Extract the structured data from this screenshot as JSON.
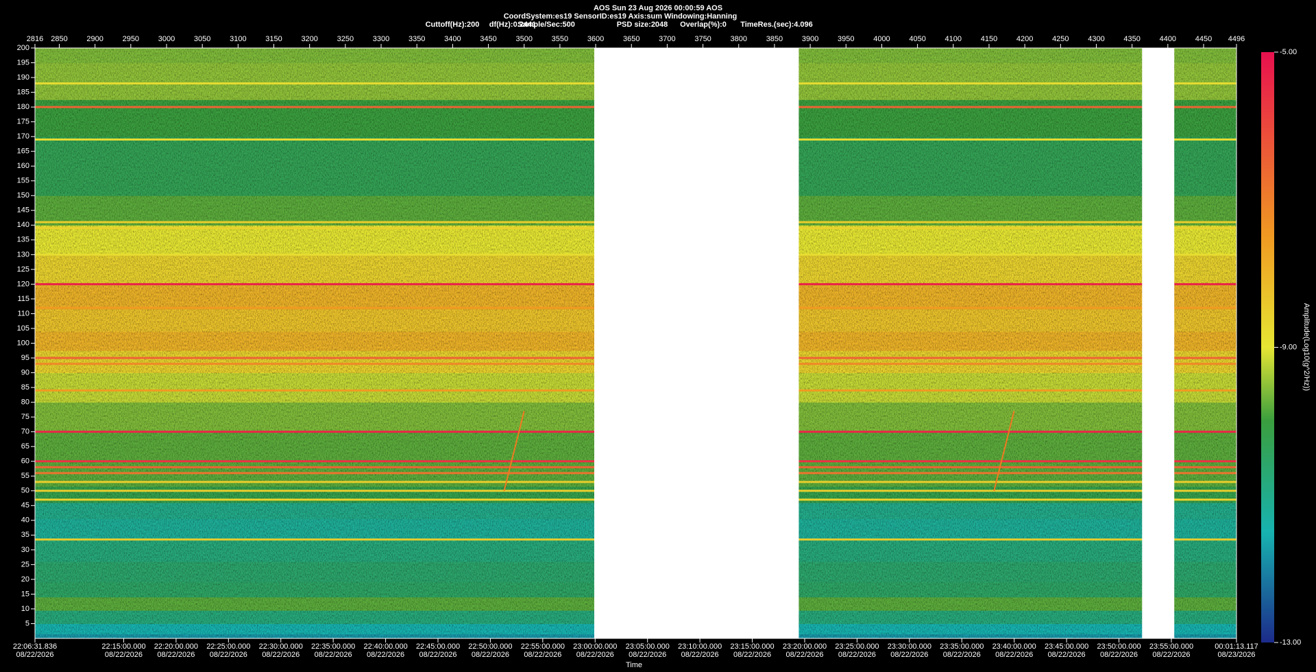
{
  "chart_data": {
    "type": "spectrogram",
    "title": "AOS  Sun 23 Aug 2026 00:00:59  AOS",
    "info_line": "CoordSystem:es19   SensorID:es19    Axis:sum    Windowing:Hanning",
    "info": [
      "Cuttoff(Hz):200",
      "df(Hz):0.2441",
      "Sample/Sec:500",
      "PSD size:2048",
      "Overlap(%):0",
      "TimeRes.(sec):4.096"
    ],
    "x_label": "Time",
    "colorbar_label": "Amplitude(Log10(g^2/Hz))",
    "xlim": [
      2816,
      4496
    ],
    "x2ticks": [
      2816,
      2850,
      2900,
      2950,
      3000,
      3050,
      3100,
      3150,
      3200,
      3250,
      3300,
      3350,
      3400,
      3450,
      3500,
      3550,
      3600,
      3650,
      3700,
      3750,
      3800,
      3850,
      3900,
      3950,
      4000,
      4050,
      4100,
      4150,
      4200,
      4250,
      4300,
      4350,
      4400,
      4450,
      4496
    ],
    "xticks": [
      {
        "value": 2816,
        "label": "22:06:31.836"
      },
      {
        "value": 2940.06,
        "label": "22:15:00.000"
      },
      {
        "value": 3013.31,
        "label": "22:20:00.000"
      },
      {
        "value": 3086.55,
        "label": "22:25:00.000"
      },
      {
        "value": 3159.79,
        "label": "22:30:00.000"
      },
      {
        "value": 3233.03,
        "label": "22:35:00.000"
      },
      {
        "value": 3306.28,
        "label": "22:40:00.000"
      },
      {
        "value": 3379.52,
        "label": "22:45:00.000"
      },
      {
        "value": 3452.76,
        "label": "22:50:00.000"
      },
      {
        "value": 3526.0,
        "label": "22:55:00.000"
      },
      {
        "value": 3599.25,
        "label": "23:00:00.000"
      },
      {
        "value": 3672.49,
        "label": "23:05:00.000"
      },
      {
        "value": 3745.73,
        "label": "23:10:00.000"
      },
      {
        "value": 3818.97,
        "label": "23:15:00.000"
      },
      {
        "value": 3892.22,
        "label": "23:20:00.000"
      },
      {
        "value": 3965.46,
        "label": "23:25:00.000"
      },
      {
        "value": 4038.7,
        "label": "23:30:00.000"
      },
      {
        "value": 4111.94,
        "label": "23:35:00.000"
      },
      {
        "value": 4185.19,
        "label": "23:40:00.000"
      },
      {
        "value": 4258.43,
        "label": "23:45:00.000"
      },
      {
        "value": 4331.67,
        "label": "23:50:00.000"
      },
      {
        "value": 4404.91,
        "label": "23:55:00.000"
      },
      {
        "value": 4496,
        "label": "00:01:13.117"
      }
    ],
    "xtick_dates": [
      "08/22/2026",
      "08/22/2026",
      "08/22/2026",
      "08/22/2026",
      "08/22/2026",
      "08/22/2026",
      "08/22/2026",
      "08/22/2026",
      "08/22/2026",
      "08/22/2026",
      "08/22/2026",
      "08/22/2026",
      "08/22/2026",
      "08/22/2026",
      "08/22/2026",
      "08/22/2026",
      "08/22/2026",
      "08/22/2026",
      "08/22/2026",
      "08/22/2026",
      "08/22/2026",
      "08/22/2026",
      "08/23/2026"
    ],
    "ylim": [
      0,
      200
    ],
    "yticks": [
      5,
      10,
      15,
      20,
      25,
      30,
      35,
      40,
      45,
      50,
      55,
      60,
      65,
      70,
      75,
      80,
      85,
      90,
      95,
      100,
      105,
      110,
      115,
      120,
      125,
      130,
      135,
      140,
      145,
      150,
      155,
      160,
      165,
      170,
      175,
      180,
      185,
      190,
      195,
      200
    ],
    "clim": [
      -13,
      -5
    ],
    "cticks": [
      {
        "value": -5,
        "label": "-5.00"
      },
      {
        "value": -9,
        "label": "-9.00"
      },
      {
        "value": -13,
        "label": "-13.00"
      }
    ],
    "colormap": {
      "values": [
        -13,
        -11.5,
        -10,
        -9,
        -7.5,
        -5
      ],
      "colors": [
        "#1c2a8a",
        "#17b3b0",
        "#3a9e3e",
        "#e6e633",
        "#f09a22",
        "#e8104e"
      ]
    },
    "profile": {
      "freqs": [
        0,
        3,
        7,
        12,
        16,
        22,
        30,
        37,
        44,
        48,
        55,
        65,
        75,
        85,
        95,
        100,
        108,
        115,
        125,
        135,
        145,
        155,
        165,
        175,
        190,
        200
      ],
      "amps": [
        -11.8,
        -11.5,
        -10.8,
        -9.8,
        -10.5,
        -10.6,
        -10.8,
        -11.2,
        -11.0,
        -10.2,
        -9.8,
        -9.8,
        -9.6,
        -9.2,
        -8.6,
        -8.0,
        -8.3,
        -8.0,
        -8.6,
        -9.0,
        -9.8,
        -10.3,
        -10.3,
        -10.0,
        -9.5,
        -9.6
      ]
    },
    "lines": [
      {
        "freq": 188,
        "amp": -8.8
      },
      {
        "freq": 180,
        "amp": -6.5
      },
      {
        "freq": 169,
        "amp": -8.8
      },
      {
        "freq": 141,
        "amp": -8.5
      },
      {
        "freq": 139,
        "amp": -8.6
      },
      {
        "freq": 130,
        "amp": -8.8
      },
      {
        "freq": 120,
        "amp": -5.3
      },
      {
        "freq": 112,
        "amp": -7.5
      },
      {
        "freq": 95,
        "amp": -6.5
      },
      {
        "freq": 93,
        "amp": -7.2
      },
      {
        "freq": 84,
        "amp": -7.5
      },
      {
        "freq": 70,
        "amp": -5.4
      },
      {
        "freq": 60,
        "amp": -5.6
      },
      {
        "freq": 58,
        "amp": -6.5
      },
      {
        "freq": 56,
        "amp": -6.8
      },
      {
        "freq": 53,
        "amp": -8.5
      },
      {
        "freq": 50,
        "amp": -8.5
      },
      {
        "freq": 47,
        "amp": -8.6
      },
      {
        "freq": 33.5,
        "amp": -8.5
      }
    ],
    "chirps": [
      {
        "x": [
          3472,
          3500
        ],
        "freq": [
          50,
          77
        ]
      },
      {
        "x": [
          4157,
          4185
        ],
        "freq": [
          50,
          77
        ]
      }
    ],
    "gaps": [
      [
        3598,
        3884
      ],
      [
        4364,
        4409
      ]
    ]
  }
}
